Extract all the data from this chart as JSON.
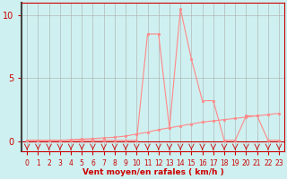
{
  "x": [
    0,
    1,
    2,
    3,
    4,
    5,
    6,
    7,
    8,
    9,
    10,
    11,
    12,
    13,
    14,
    15,
    16,
    17,
    18,
    19,
    20,
    21,
    22,
    23
  ],
  "y_rafales": [
    0.05,
    0.05,
    0.05,
    0.05,
    0.05,
    0.05,
    0.05,
    0.05,
    0.05,
    0.05,
    0.05,
    8.5,
    8.5,
    1.0,
    10.5,
    6.5,
    3.2,
    3.2,
    0.05,
    0.05,
    2.0,
    2.0,
    0.05,
    0.05
  ],
  "y_moyen": [
    0.05,
    0.05,
    0.05,
    0.05,
    0.1,
    0.15,
    0.2,
    0.25,
    0.3,
    0.4,
    0.55,
    0.7,
    0.9,
    1.05,
    1.2,
    1.35,
    1.5,
    1.6,
    1.7,
    1.8,
    1.9,
    2.0,
    2.1,
    2.2
  ],
  "line_color": "#ff8888",
  "bg_color": "#cff0f0",
  "grid_color": "#aaaaaa",
  "axis_color": "#cc0000",
  "xlabel": "Vent moyen/en rafales ( km/h )",
  "yticks": [
    0,
    5,
    10
  ],
  "xticks": [
    0,
    1,
    2,
    3,
    4,
    5,
    6,
    7,
    8,
    9,
    10,
    11,
    12,
    13,
    14,
    15,
    16,
    17,
    18,
    19,
    20,
    21,
    22,
    23
  ],
  "xlim": [
    -0.5,
    23.5
  ],
  "ylim": [
    -0.8,
    11.0
  ]
}
